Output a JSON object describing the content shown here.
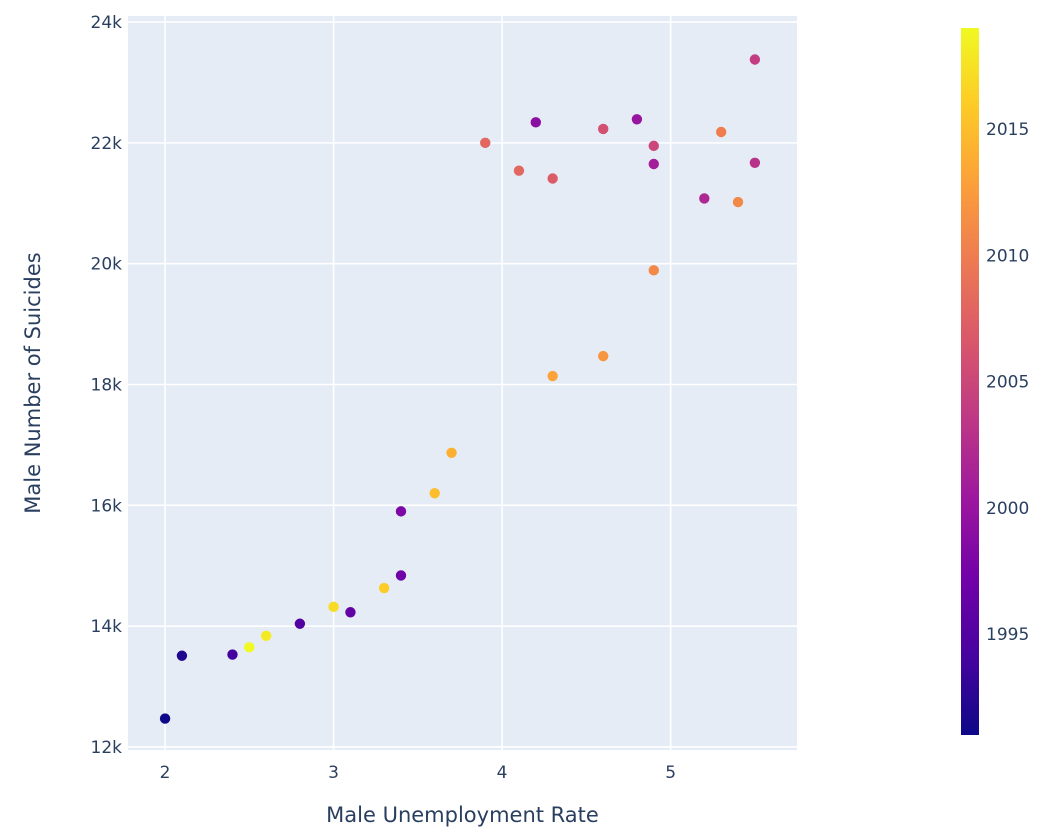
{
  "chart_data": {
    "type": "scatter",
    "title": "",
    "xlabel": "Male Unemployment Rate",
    "ylabel": "Male Number of Suicides",
    "xlim": [
      1.78,
      5.75
    ],
    "ylim": [
      11950,
      24100
    ],
    "x_ticks": [
      2,
      3,
      4,
      5
    ],
    "y_ticks": [
      12000,
      14000,
      16000,
      18000,
      20000,
      22000,
      24000
    ],
    "y_tick_labels": [
      "12k",
      "14k",
      "16k",
      "18k",
      "20k",
      "22k",
      "24k"
    ],
    "grid": true,
    "plot_background": "#e5ecf6",
    "colorbar": {
      "title": "",
      "range": [
        1991,
        2019
      ],
      "ticks": [
        1995,
        2000,
        2005,
        2010,
        2015
      ],
      "colorscale": [
        "#0d0887",
        "#46039f",
        "#7201a8",
        "#9c179e",
        "#bd3786",
        "#d8576b",
        "#ed7953",
        "#fb9f3a",
        "#fdca26",
        "#f0f921"
      ]
    },
    "points": [
      {
        "x": 2.0,
        "y": 12470,
        "year": 1991
      },
      {
        "x": 2.1,
        "y": 13510,
        "year": 1992
      },
      {
        "x": 2.4,
        "y": 13530,
        "year": 1994
      },
      {
        "x": 2.8,
        "y": 14040,
        "year": 1995
      },
      {
        "x": 3.1,
        "y": 14230,
        "year": 1996
      },
      {
        "x": 3.4,
        "y": 14840,
        "year": 1997
      },
      {
        "x": 3.4,
        "y": 15900,
        "year": 1998
      },
      {
        "x": 4.2,
        "y": 22340,
        "year": 1999
      },
      {
        "x": 4.8,
        "y": 22390,
        "year": 2000
      },
      {
        "x": 4.9,
        "y": 21650,
        "year": 2001
      },
      {
        "x": 5.2,
        "y": 21080,
        "year": 2002
      },
      {
        "x": 5.5,
        "y": 21670,
        "year": 2003
      },
      {
        "x": 5.5,
        "y": 23380,
        "year": 2004
      },
      {
        "x": 4.9,
        "y": 21950,
        "year": 2005
      },
      {
        "x": 4.6,
        "y": 22230,
        "year": 2006
      },
      {
        "x": 4.3,
        "y": 21410,
        "year": 2007
      },
      {
        "x": 4.1,
        "y": 21540,
        "year": 2008
      },
      {
        "x": 3.9,
        "y": 22000,
        "year": 2008
      },
      {
        "x": 5.3,
        "y": 22180,
        "year": 2010
      },
      {
        "x": 5.4,
        "y": 21020,
        "year": 2011
      },
      {
        "x": 4.9,
        "y": 19890,
        "year": 2011
      },
      {
        "x": 4.6,
        "y": 18470,
        "year": 2012
      },
      {
        "x": 4.3,
        "y": 18140,
        "year": 2013
      },
      {
        "x": 3.7,
        "y": 16870,
        "year": 2014
      },
      {
        "x": 3.6,
        "y": 16200,
        "year": 2015
      },
      {
        "x": 3.3,
        "y": 14630,
        "year": 2016
      },
      {
        "x": 3.0,
        "y": 14320,
        "year": 2017
      },
      {
        "x": 2.6,
        "y": 13840,
        "year": 2018
      },
      {
        "x": 2.5,
        "y": 13650,
        "year": 2019
      }
    ]
  }
}
